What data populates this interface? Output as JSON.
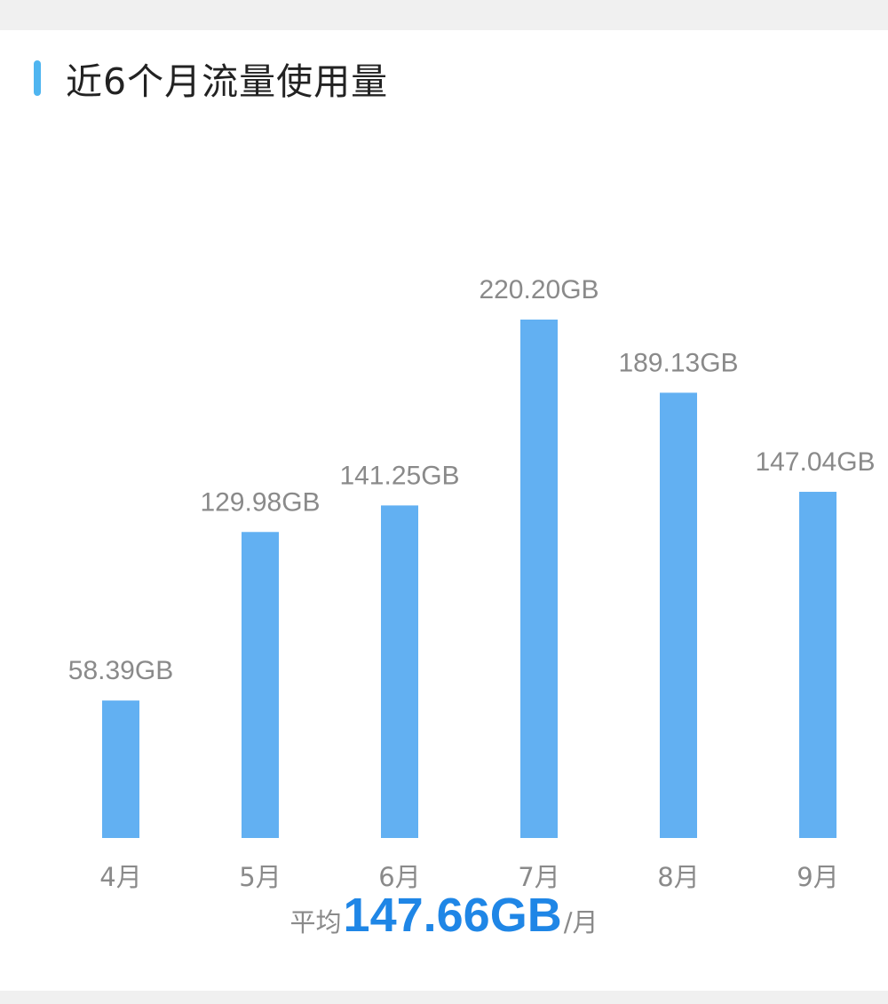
{
  "title": "近6个月流量使用量",
  "summary": {
    "prefix": "平均",
    "value": "147.66GB",
    "suffix": "/月"
  },
  "colors": {
    "bar": "#62b0f2",
    "accent": "#4fb5f0",
    "summary_value": "#1f86e6"
  },
  "chart_data": {
    "type": "bar",
    "title": "近6个月流量使用量",
    "categories": [
      "4月",
      "5月",
      "6月",
      "7月",
      "8月",
      "9月"
    ],
    "values": [
      58.39,
      129.98,
      141.25,
      220.2,
      189.13,
      147.04
    ],
    "data_labels": [
      "58.39GB",
      "129.98GB",
      "141.25GB",
      "220.20GB",
      "189.13GB",
      "147.04GB"
    ],
    "unit": "GB",
    "ylim": [
      0,
      220.2
    ],
    "grid": false,
    "legend": "none"
  }
}
